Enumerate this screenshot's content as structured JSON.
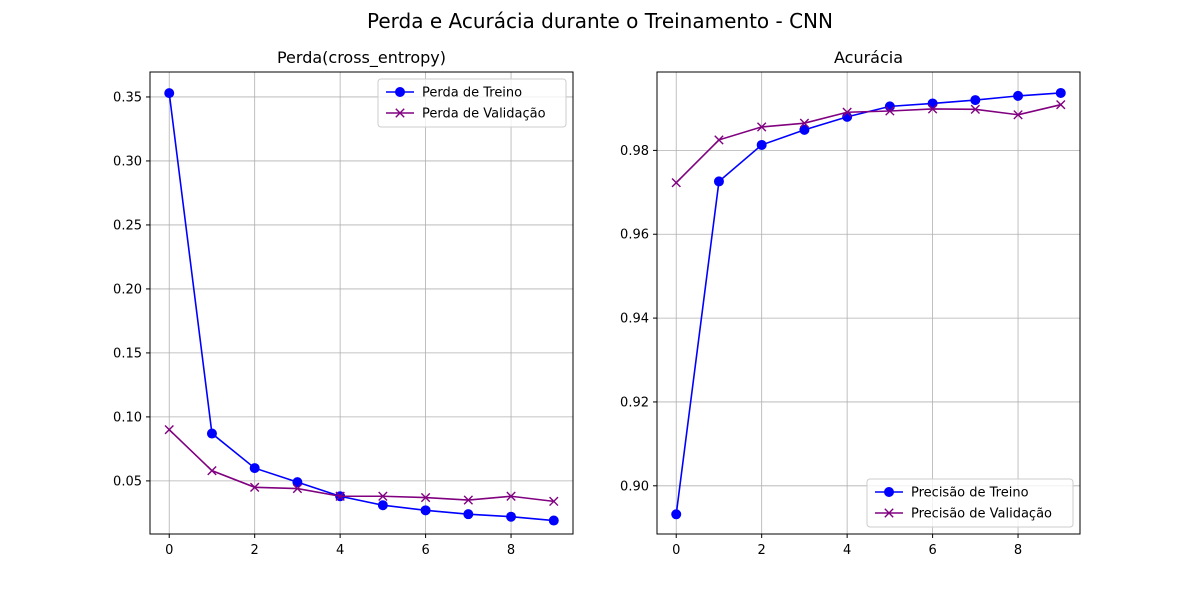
{
  "figure": {
    "suptitle": "Perda e Acurácia durante o Treinamento - CNN"
  },
  "colors": {
    "train": "#0000ff",
    "validation": "#800080",
    "grid": "#b0b0b0"
  },
  "chart_data": [
    {
      "type": "line",
      "title": "Perda(cross_entropy)",
      "xlabel": "",
      "ylabel": "",
      "x": [
        0,
        1,
        2,
        3,
        4,
        5,
        6,
        7,
        8,
        9
      ],
      "xlim": [
        -0.45,
        9.45
      ],
      "ylim": [
        0.0085,
        0.3695
      ],
      "xticks": [
        0,
        2,
        4,
        6,
        8
      ],
      "xtick_labels": [
        "0",
        "2",
        "4",
        "6",
        "8"
      ],
      "yticks": [
        0.05,
        0.1,
        0.15,
        0.2,
        0.25,
        0.3,
        0.35
      ],
      "ytick_labels": [
        "0.05",
        "0.10",
        "0.15",
        "0.20",
        "0.25",
        "0.30",
        "0.35"
      ],
      "grid": true,
      "legend_position": "top-right",
      "series": [
        {
          "name": "Perda de Treino",
          "marker": "circle",
          "color": "#0000ff",
          "values": [
            0.353,
            0.087,
            0.06,
            0.049,
            0.038,
            0.031,
            0.027,
            0.024,
            0.022,
            0.019
          ]
        },
        {
          "name": "Perda de Validação",
          "marker": "x",
          "color": "#800080",
          "values": [
            0.09,
            0.058,
            0.045,
            0.044,
            0.038,
            0.038,
            0.037,
            0.035,
            0.038,
            0.034
          ]
        }
      ]
    },
    {
      "type": "line",
      "title": "Acurácia",
      "xlabel": "",
      "ylabel": "",
      "x": [
        0,
        1,
        2,
        3,
        4,
        5,
        6,
        7,
        8,
        9
      ],
      "xlim": [
        -0.45,
        9.45
      ],
      "ylim": [
        0.8885,
        0.9987
      ],
      "xticks": [
        0,
        2,
        4,
        6,
        8
      ],
      "xtick_labels": [
        "0",
        "2",
        "4",
        "6",
        "8"
      ],
      "yticks": [
        0.9,
        0.92,
        0.94,
        0.96,
        0.98
      ],
      "ytick_labels": [
        "0.90",
        "0.92",
        "0.94",
        "0.96",
        "0.98"
      ],
      "grid": true,
      "legend_position": "bottom-right",
      "series": [
        {
          "name": "Precisão de Treino",
          "marker": "circle",
          "color": "#0000ff",
          "values": [
            0.8932,
            0.9726,
            0.9813,
            0.9849,
            0.988,
            0.9905,
            0.9912,
            0.992,
            0.993,
            0.9937
          ]
        },
        {
          "name": "Precisão de Validação",
          "marker": "x",
          "color": "#800080",
          "values": [
            0.9723,
            0.9825,
            0.9856,
            0.9865,
            0.9891,
            0.9894,
            0.9899,
            0.9898,
            0.9885,
            0.9909
          ]
        }
      ]
    }
  ]
}
